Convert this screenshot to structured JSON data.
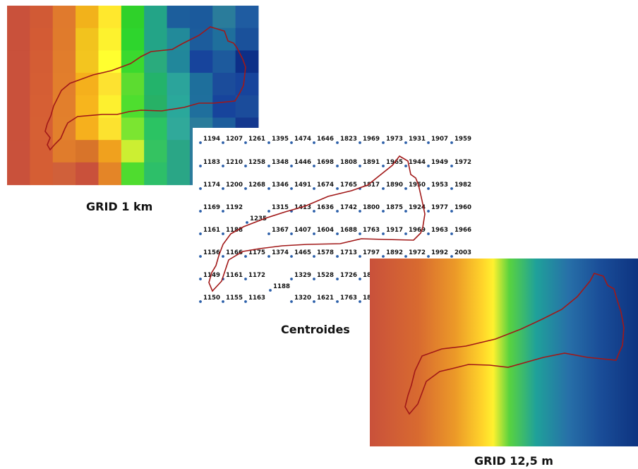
{
  "panels": {
    "grid_1km": {
      "caption": "GRID 1 km",
      "colors": [
        [
          "#c9513b",
          "#d15a35",
          "#e07a2d",
          "#f2b21b",
          "#ffe82d",
          "#2fd12a",
          "#23a487",
          "#1c5e9c",
          "#1b5a9c",
          "#2a7c9b",
          "#1f5ca1"
        ],
        [
          "#c9513b",
          "#d35b34",
          "#e07b2c",
          "#f2c31e",
          "#fdf22e",
          "#2ed52d",
          "#23a487",
          "#228a9a",
          "#1c5c9c",
          "#1f6f9c",
          "#1a519b"
        ],
        [
          "#c9513b",
          "#d45d34",
          "#e17d2c",
          "#f3c51f",
          "#ffff2f",
          "#3bd92e",
          "#2aab7d",
          "#21879b",
          "#17449c",
          "#1d5a9d",
          "#0d2f88"
        ],
        [
          "#c9513b",
          "#d55e34",
          "#e27e2c",
          "#f5b01c",
          "#fde230",
          "#5cdc30",
          "#23b36b",
          "#2ba49b",
          "#1e6f9c",
          "#1b4c9b",
          "#17449c"
        ],
        [
          "#c9513b",
          "#d65f34",
          "#e27f2c",
          "#f7b51d",
          "#fdf02f",
          "#4ede2f",
          "#27b166",
          "#2aa89b",
          "#1f6f9d",
          "#17449c",
          "#1b4c9b"
        ],
        [
          "#c9513b",
          "#d66034",
          "#e2802c",
          "#f6b01d",
          "#fce22f",
          "#7be531",
          "#2bc363",
          "#30a99a",
          "#2a7c9b",
          "#1d5d9c",
          "#14388f"
        ],
        [
          "#c9513b",
          "#d55e34",
          "#e07c2c",
          "#d8742a",
          "#f0a11e",
          "#ccef32",
          "#34c361",
          "#2aa686",
          "#2a7c9b",
          "#1d5d9c",
          "#14388f"
        ],
        [
          "#c9513b",
          "#d55e34",
          "#d0603a",
          "#c9513b",
          "#e48527",
          "#4fdc2f",
          "#2dbf69",
          "#2aa686",
          "#2a7c9b",
          "#1d5d9c",
          "#14388f"
        ]
      ]
    },
    "centroides": {
      "caption": "Centroides",
      "dot_color": "#2a5ea8",
      "rows": [
        [
          "1194",
          "1207",
          "1261",
          "1395",
          "1474",
          "1646",
          "1823",
          "1969",
          "1973",
          "1931",
          "1907",
          "1959"
        ],
        [
          "1183",
          "1210",
          "1258",
          "1348",
          "1446",
          "1698",
          "1808",
          "1891",
          "1965",
          "1944",
          "1949",
          "1972"
        ],
        [
          "1174",
          "1200",
          "1268",
          "1346",
          "1491",
          "1674",
          "1765",
          "1817",
          "1890",
          "1950",
          "1953",
          "1982"
        ],
        [
          "1169",
          "1192",
          "",
          "1315",
          "1413",
          "1636",
          "1742",
          "1800",
          "1875",
          "1924",
          "1977",
          "1960"
        ],
        [
          "1161",
          "1188",
          "",
          "1367",
          "1407",
          "1604",
          "1688",
          "1763",
          "1917",
          "1969",
          "1963",
          "1966"
        ],
        [
          "1156",
          "1166",
          "1175",
          "1374",
          "1465",
          "1578",
          "1713",
          "1797",
          "1892",
          "1972",
          "1992",
          "2003"
        ],
        [
          "1149",
          "1161",
          "1172",
          "",
          "1329",
          "1528",
          "1726",
          "18",
          "",
          "",
          "",
          ""
        ],
        [
          "1150",
          "1155",
          "1163",
          "",
          "1320",
          "1621",
          "1763",
          "18",
          "",
          "",
          "",
          ""
        ]
      ],
      "extra_points": [
        "1235",
        "1188"
      ]
    },
    "grid_12_5m": {
      "caption": "GRID 12,5 m",
      "gradient_stops": [
        "#c9513b",
        "#d86a30",
        "#ec9a28",
        "#ffd42a",
        "#fff12f",
        "#59d33f",
        "#1fa19a",
        "#2770a8",
        "#1a4d98",
        "#0d3380"
      ]
    },
    "boundary_color": "#a11818"
  }
}
